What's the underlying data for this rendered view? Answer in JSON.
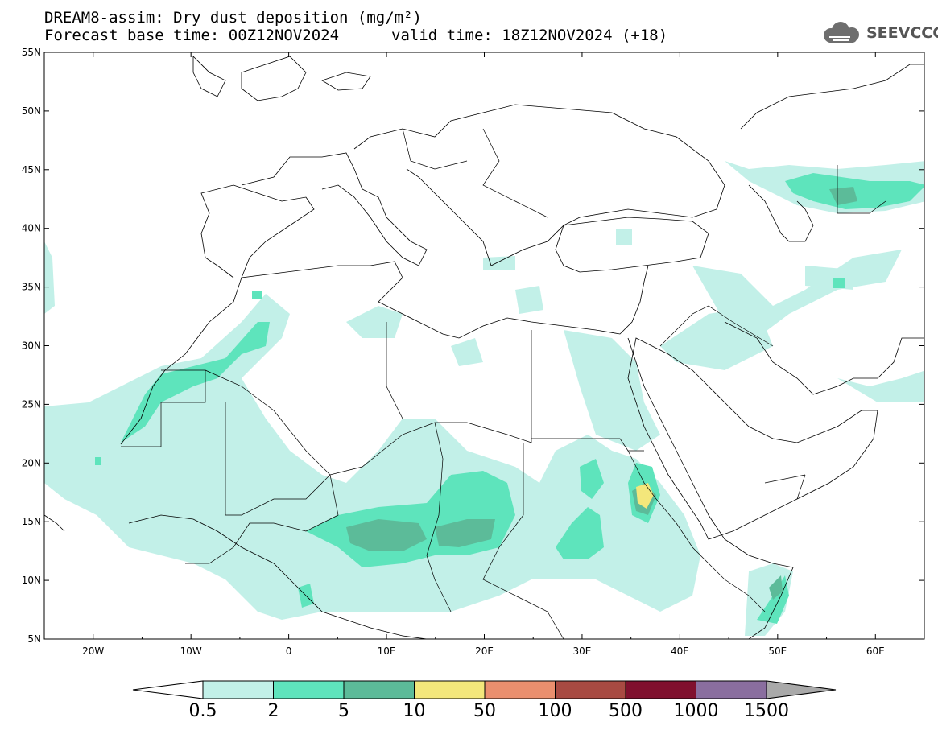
{
  "header": {
    "title_line1": "DREAM8-assim: Dry dust deposition (mg/m²)",
    "forecast_base": "Forecast base time: 00Z12NOV2024",
    "valid_time": "valid time: 18Z12NOV2024 (+18)"
  },
  "logo": {
    "text": "SEEVCCC",
    "icon": "cloud-icon"
  },
  "map": {
    "lat_ticks": [
      "55N",
      "50N",
      "45N",
      "40N",
      "35N",
      "30N",
      "25N",
      "20N",
      "15N",
      "10N",
      "5N"
    ],
    "lon_ticks": [
      "20W",
      "10W",
      "0",
      "10E",
      "20E",
      "30E",
      "40E",
      "50E",
      "60E"
    ],
    "lat_range": [
      5,
      55
    ],
    "lon_range": [
      -25,
      65
    ]
  },
  "colorbar": {
    "labels": [
      "0.5",
      "2",
      "5",
      "10",
      "50",
      "100",
      "500",
      "1000",
      "1500"
    ],
    "colors": [
      "#c2f0e8",
      "#5ee4bc",
      "#5cbb99",
      "#f3e77b",
      "#ea8f6e",
      "#a84a42",
      "#80102e",
      "#8a6e9f",
      "#a9a9a9"
    ],
    "under_color": "#ffffff"
  }
}
